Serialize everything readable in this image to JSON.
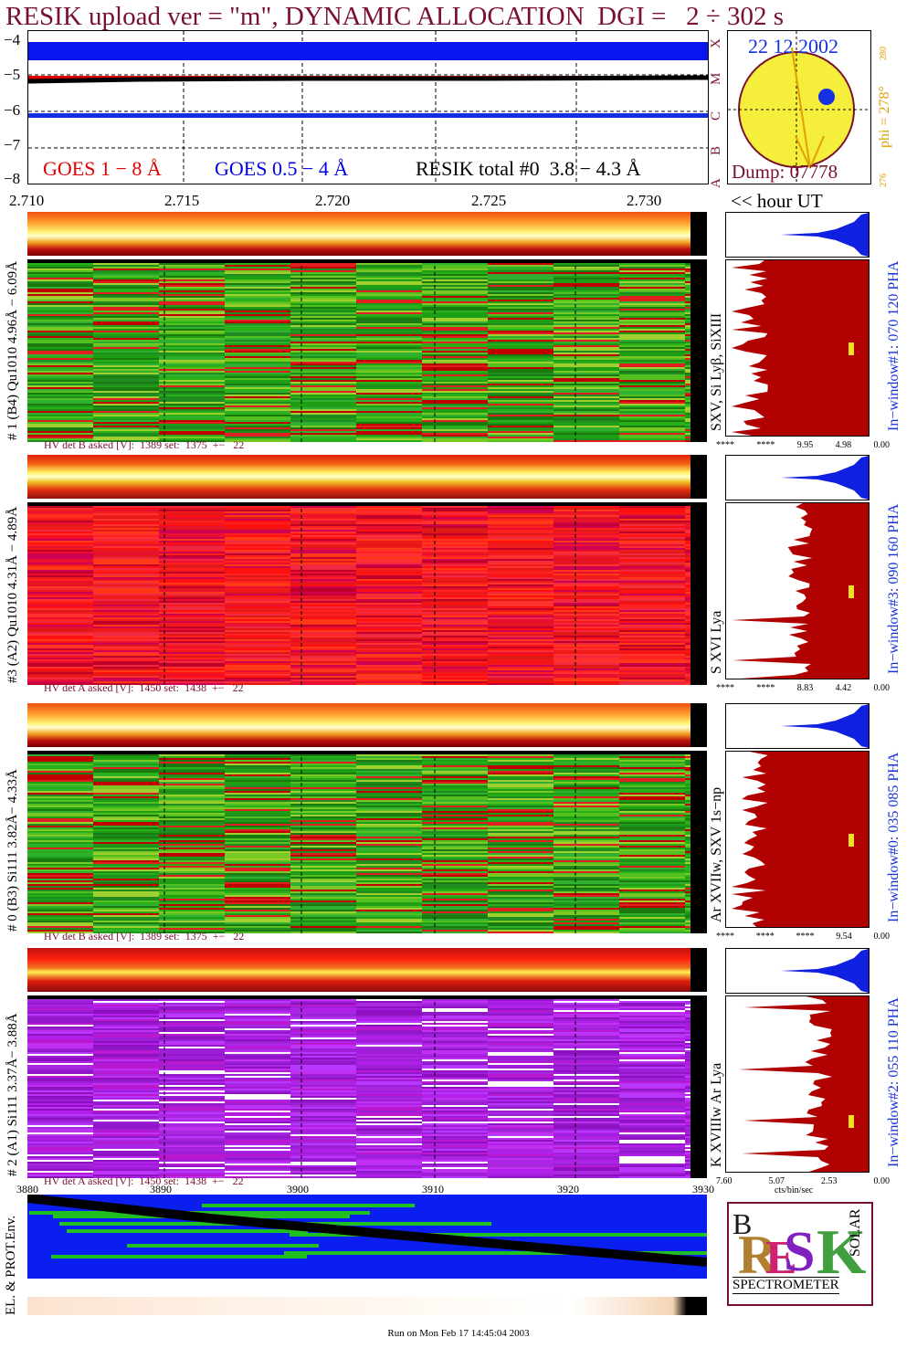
{
  "title": "RESIK upload ver = \"m\", DYNAMIC ALLOCATION  DGI =   2 ÷ 302 s",
  "lightcurve": {
    "y_ticks": [
      "−4",
      "−5",
      "−6",
      "−7",
      "−8"
    ],
    "class_letters": [
      "X",
      "M",
      "C",
      "B",
      "A"
    ],
    "x_ticks": [
      "2.710",
      "2.715",
      "2.720",
      "2.725",
      "2.730"
    ],
    "legend": {
      "goes_long": "GOES 1 − 8 Å",
      "goes_short": "GOES 0.5 − 4 Å",
      "resik": "RESIK total #0  3.8 − 4.3 Å"
    },
    "hour_label": "<< hour UT",
    "colors": {
      "goes_long": "#e00000",
      "goes_short": "#0000e0",
      "resik": "#000000"
    }
  },
  "sun": {
    "date": "22 12 2002",
    "dump": "Dump: 07778",
    "phi": "phi = 278°",
    "phi_sup": "280",
    "phi_low": "276"
  },
  "channels": [
    {
      "left_label": "# 1 (B4) Qu1010 4.96Å − 6.09Å",
      "line_label": "SXV, Si Lyβ, SiXIII",
      "hv": "HV det B asked [V]:  1389 set:  1375  +−   22",
      "window": "In−window#1:  070 120 PHA",
      "axis": [
        "****",
        "****",
        "9.95",
        "4.98",
        "0.00"
      ],
      "scheme": "green"
    },
    {
      "left_label": "#3 (A2) Qu1010  4.31Å − 4.89Å",
      "line_label": "S XVI Lya",
      "hv": "HV det A asked [V]:  1450 set:  1438  +−   22",
      "window": "In−window#3:  090 160 PHA",
      "axis": [
        "****",
        "****",
        "8.83",
        "4.42",
        "0.00"
      ],
      "scheme": "red"
    },
    {
      "left_label": "# 0 (B3) Si111  3.82Å− 4.33Å",
      "line_label": "Ar XVIIw, SXV 1s−np",
      "hv": "HV det B asked [V]:  1389 set:  1375  +−   22",
      "window": "In−window#0:  035 085 PHA",
      "axis": [
        "****",
        "****",
        "****",
        "9.54",
        "0.00"
      ],
      "scheme": "green"
    },
    {
      "left_label": "# 2 (A1) Si111  3.37Å− 3.88Å",
      "line_label": "K XVIIIw  Ar Lya",
      "hv": "HV det A asked [V]:  1450 set:  1438  +−   22",
      "window": "In−window#2:  055 110 PHA",
      "axis": [
        "7.60",
        "5.07",
        "2.53",
        "0.00"
      ],
      "scheme": "violet"
    }
  ],
  "hist_xlabel": "cts/bin/sec",
  "env": {
    "x_ticks": [
      "3880",
      "3890",
      "3900",
      "3910",
      "3920",
      "3930"
    ],
    "label": "EL. & PROT.Env."
  },
  "logo": {
    "bottom": "SPECTROMETER",
    "solar": "SOLAR"
  },
  "footer": "Run on Mon Feb 17 14:45:04 2003"
}
